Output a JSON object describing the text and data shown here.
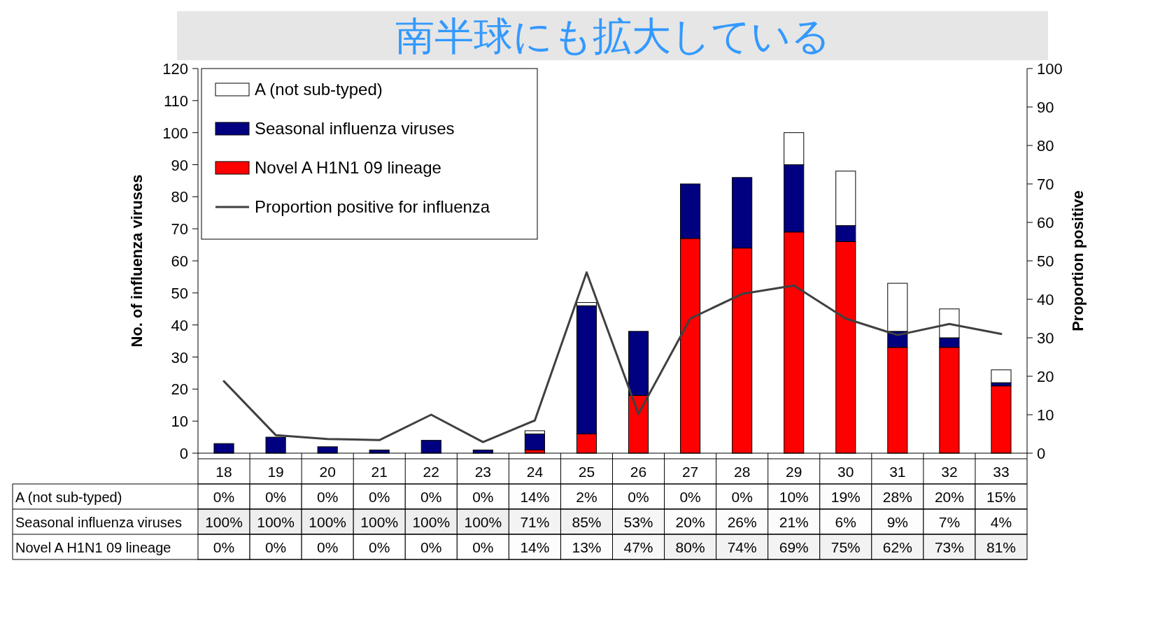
{
  "chart_data": [
    {
      "type": "bar",
      "title": "南半球にも拡大している",
      "stacked": true,
      "legend": "top left",
      "tick_labels": "y",
      "ylabel": "No. of influenza viruses",
      "y2label": "Proportion positive",
      "categories": [
        "18",
        "19",
        "20",
        "21",
        "22",
        "23",
        "24",
        "25",
        "26",
        "27",
        "28",
        "29",
        "30",
        "31",
        "32",
        "33"
      ],
      "ylim": [
        0,
        120
      ],
      "yticks": [
        0,
        10,
        20,
        30,
        40,
        50,
        60,
        70,
        80,
        90,
        100,
        110,
        120
      ],
      "y2lim": [
        0,
        100
      ],
      "y2ticks": [
        0,
        10,
        20,
        30,
        40,
        50,
        60,
        70,
        80,
        90,
        100
      ],
      "series": [
        {
          "name": "Novel A H1N1 09 lineage",
          "color": "#ff0000",
          "values": [
            0,
            0,
            0,
            0,
            0,
            0,
            1,
            6,
            18,
            67,
            64,
            69,
            66,
            33,
            33,
            21
          ]
        },
        {
          "name": "Seasonal influenza viruses",
          "color": "#000080",
          "values": [
            3,
            5,
            2,
            1,
            4,
            1,
            5,
            40,
            20,
            17,
            22,
            21,
            5,
            5,
            3,
            1
          ]
        },
        {
          "name": "A (not sub-typed)",
          "color": "#ffffff",
          "values": [
            0,
            0,
            0,
            0,
            0,
            0,
            1,
            1,
            0,
            0,
            0,
            10,
            17,
            15,
            9,
            4
          ]
        },
        {
          "name": "Proportion positive for influenza",
          "type": "line",
          "axis": "y2",
          "color": "#404040",
          "values": [
            18.7,
            4.7,
            3.7,
            3.4,
            10,
            2.9,
            8.5,
            47,
            10.2,
            35,
            41.4,
            43.6,
            35,
            30.7,
            33.6,
            31
          ]
        }
      ]
    },
    {
      "type": "heatmap",
      "categories": [
        "18",
        "19",
        "20",
        "21",
        "22",
        "23",
        "24",
        "25",
        "26",
        "27",
        "28",
        "29",
        "30",
        "31",
        "32",
        "33"
      ],
      "y_categories": [
        "A (not sub-typed)",
        "Seasonal influenza viruses",
        "Novel A H1N1 09 lineage"
      ],
      "cells": [
        [
          0,
          0,
          0,
          0,
          0,
          0,
          14,
          2,
          0,
          0,
          0,
          10,
          19,
          28,
          20,
          15
        ],
        [
          100,
          100,
          100,
          100,
          100,
          100,
          71,
          85,
          53,
          20,
          26,
          21,
          6,
          9,
          7,
          4
        ],
        [
          0,
          0,
          0,
          0,
          0,
          0,
          14,
          13,
          47,
          80,
          74,
          69,
          75,
          62,
          73,
          81
        ]
      ],
      "cell_labels": [
        [
          "0%",
          "0%",
          "0%",
          "0%",
          "0%",
          "0%",
          "14%",
          "2%",
          "0%",
          "0%",
          "0%",
          "10%",
          "19%",
          "28%",
          "20%",
          "15%"
        ],
        [
          "100%",
          "100%",
          "100%",
          "100%",
          "100%",
          "100%",
          "71%",
          "85%",
          "53%",
          "20%",
          "26%",
          "21%",
          "6%",
          "9%",
          "7%",
          "4%"
        ],
        [
          "0%",
          "0%",
          "0%",
          "0%",
          "0%",
          "0%",
          "14%",
          "13%",
          "47%",
          "80%",
          "74%",
          "69%",
          "75%",
          "62%",
          "73%",
          "81%"
        ]
      ]
    }
  ]
}
